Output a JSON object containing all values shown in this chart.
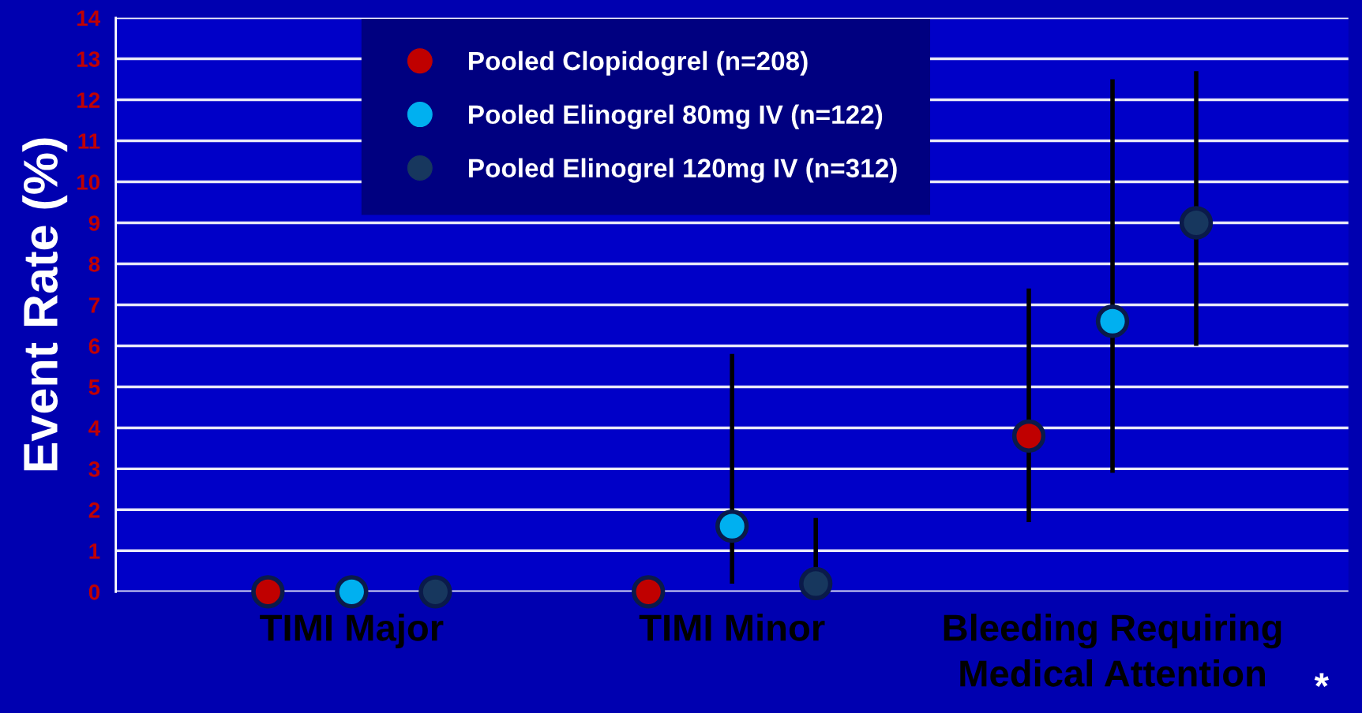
{
  "chart_data": {
    "type": "scatter",
    "ylabel": "Event Rate (%)",
    "categories": [
      "TIMI Major",
      "TIMI Minor",
      "Bleeding Requiring Medical Attention"
    ],
    "series": [
      {
        "name": "Pooled Clopidogrel (n=208)",
        "color": "#c00000",
        "values": [
          0,
          0,
          3.8
        ],
        "errors": [
          null,
          null,
          [
            1.7,
            7.4
          ]
        ]
      },
      {
        "name": "Pooled Elinogrel 80mg IV (n=122)",
        "color": "#00b0f0",
        "values": [
          0,
          1.6,
          6.6
        ],
        "errors": [
          null,
          [
            0.2,
            5.8
          ],
          [
            2.9,
            12.5
          ]
        ]
      },
      {
        "name": "Pooled Elinogrel 120mg IV (n=312)",
        "color": "#17375e",
        "values": [
          0,
          0.2,
          9.0
        ],
        "errors": [
          null,
          [
            0.2,
            1.8
          ],
          [
            6.0,
            12.7
          ]
        ]
      }
    ],
    "ylim": [
      0,
      14
    ],
    "yticks": [
      0,
      1,
      2,
      3,
      4,
      5,
      6,
      7,
      8,
      9,
      10,
      11,
      12,
      13,
      14
    ],
    "grid": "y",
    "legend": "top",
    "marker": "circle",
    "annotations": [
      "*"
    ]
  }
}
